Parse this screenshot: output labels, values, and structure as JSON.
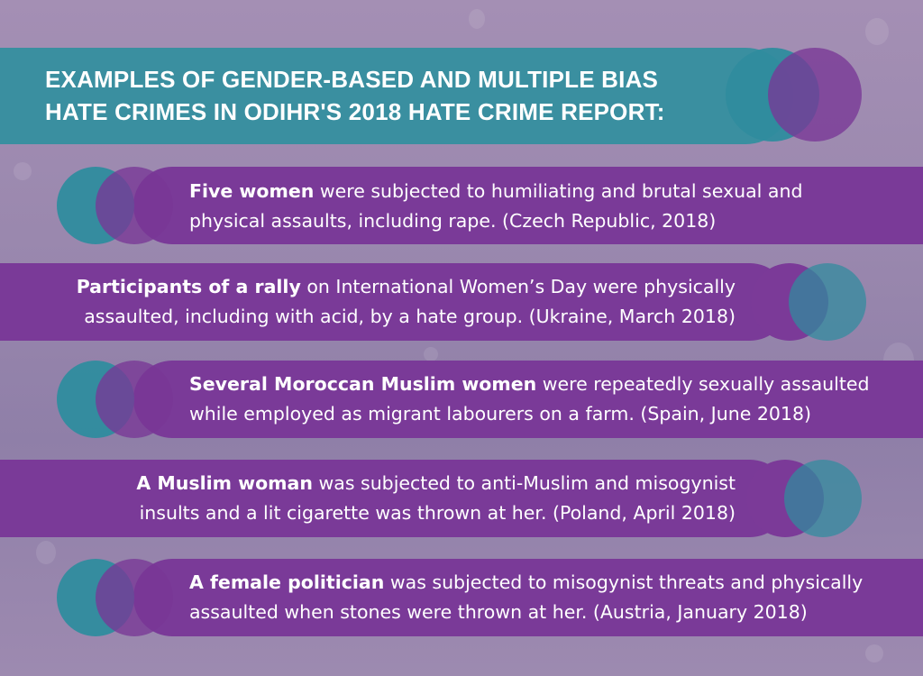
{
  "header": {
    "title_line1": "EXAMPLES OF GENDER-BASED AND MULTIPLE BIAS",
    "title_line2": "HATE CRIMES IN ODIHR'S 2018 HATE CRIME REPORT:"
  },
  "colors": {
    "teal": "#3a8fa0",
    "purple": "#7a3a98",
    "background": "#9a88ae"
  },
  "items": [
    {
      "bold": "Five women",
      "rest_line1": " were subjected to humiliating and brutal sexual and",
      "line2": "physical assaults, including rape. (Czech Republic, 2018)"
    },
    {
      "bold": "Participants of a rally",
      "rest_line1": " on International Women’s Day were physically",
      "line2": "assaulted, including with acid, by a hate group. (Ukraine, March 2018)"
    },
    {
      "bold": "Several Moroccan Muslim women",
      "rest_line1": " were repeatedly sexually assaulted",
      "line2": "while employed as migrant labourers on a farm. (Spain, June 2018)"
    },
    {
      "bold": "A Muslim woman",
      "rest_line1": " was subjected to anti-Muslim and misogynist",
      "line2": "insults and a lit cigarette was thrown at her. (Poland, April 2018)"
    },
    {
      "bold": "A female politician",
      "rest_line1": " was subjected to misogynist threats and physically",
      "line2": "assaulted when stones were thrown at her. (Austria, January 2018)"
    }
  ]
}
